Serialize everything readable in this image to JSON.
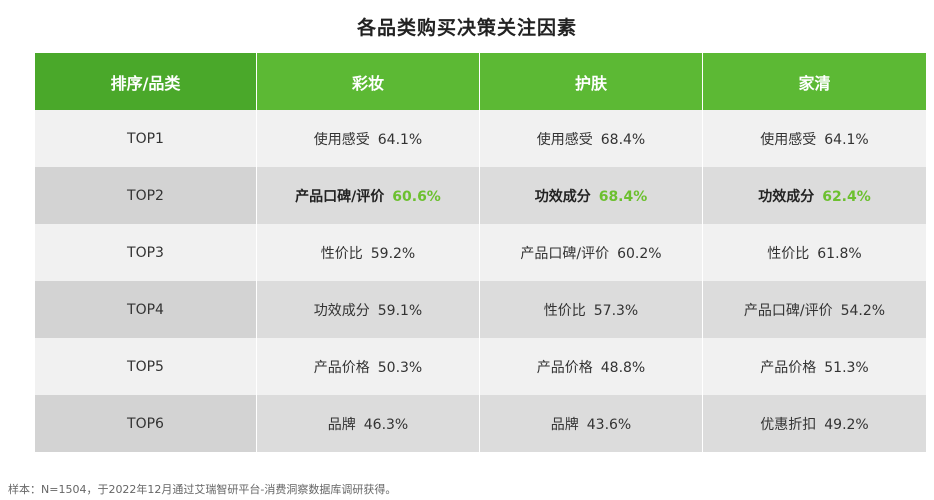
{
  "title": "各品类购买决策关注因素",
  "colors": {
    "header_bg": "#5cb934",
    "header_first_bg": "#4aa82a",
    "header_text": "#ffffff",
    "highlight_value": "#6cc02f",
    "row_light": "#f1f1f1",
    "row_dark": "#dcdcdc"
  },
  "chart_data": {
    "type": "table",
    "title": "各品类购买决策关注因素",
    "columns": [
      "排序/品类",
      "彩妆",
      "护肤",
      "家清"
    ],
    "highlight_row": "TOP2",
    "rows": [
      {
        "rank": "TOP1",
        "cells": [
          {
            "factor": "使用感受",
            "value": "64.1%"
          },
          {
            "factor": "使用感受",
            "value": "68.4%"
          },
          {
            "factor": "使用感受",
            "value": "64.1%"
          }
        ]
      },
      {
        "rank": "TOP2",
        "cells": [
          {
            "factor": "产品口碑/评价",
            "value": "60.6%"
          },
          {
            "factor": "功效成分",
            "value": "68.4%"
          },
          {
            "factor": "功效成分",
            "value": "62.4%"
          }
        ]
      },
      {
        "rank": "TOP3",
        "cells": [
          {
            "factor": "性价比",
            "value": "59.2%"
          },
          {
            "factor": "产品口碑/评价",
            "value": "60.2%"
          },
          {
            "factor": "性价比",
            "value": "61.8%"
          }
        ]
      },
      {
        "rank": "TOP4",
        "cells": [
          {
            "factor": "功效成分",
            "value": "59.1%"
          },
          {
            "factor": "性价比",
            "value": "57.3%"
          },
          {
            "factor": "产品口碑/评价",
            "value": "54.2%"
          }
        ]
      },
      {
        "rank": "TOP5",
        "cells": [
          {
            "factor": "产品价格",
            "value": "50.3%"
          },
          {
            "factor": "产品价格",
            "value": "48.8%"
          },
          {
            "factor": "产品价格",
            "value": "51.3%"
          }
        ]
      },
      {
        "rank": "TOP6",
        "cells": [
          {
            "factor": "品牌",
            "value": "46.3%"
          },
          {
            "factor": "品牌",
            "value": "43.6%"
          },
          {
            "factor": "优惠折扣",
            "value": "49.2%"
          }
        ]
      }
    ]
  },
  "note": "样本：N=1504，于2022年12月通过艾瑞智研平台-消费洞察数据库调研获得。"
}
